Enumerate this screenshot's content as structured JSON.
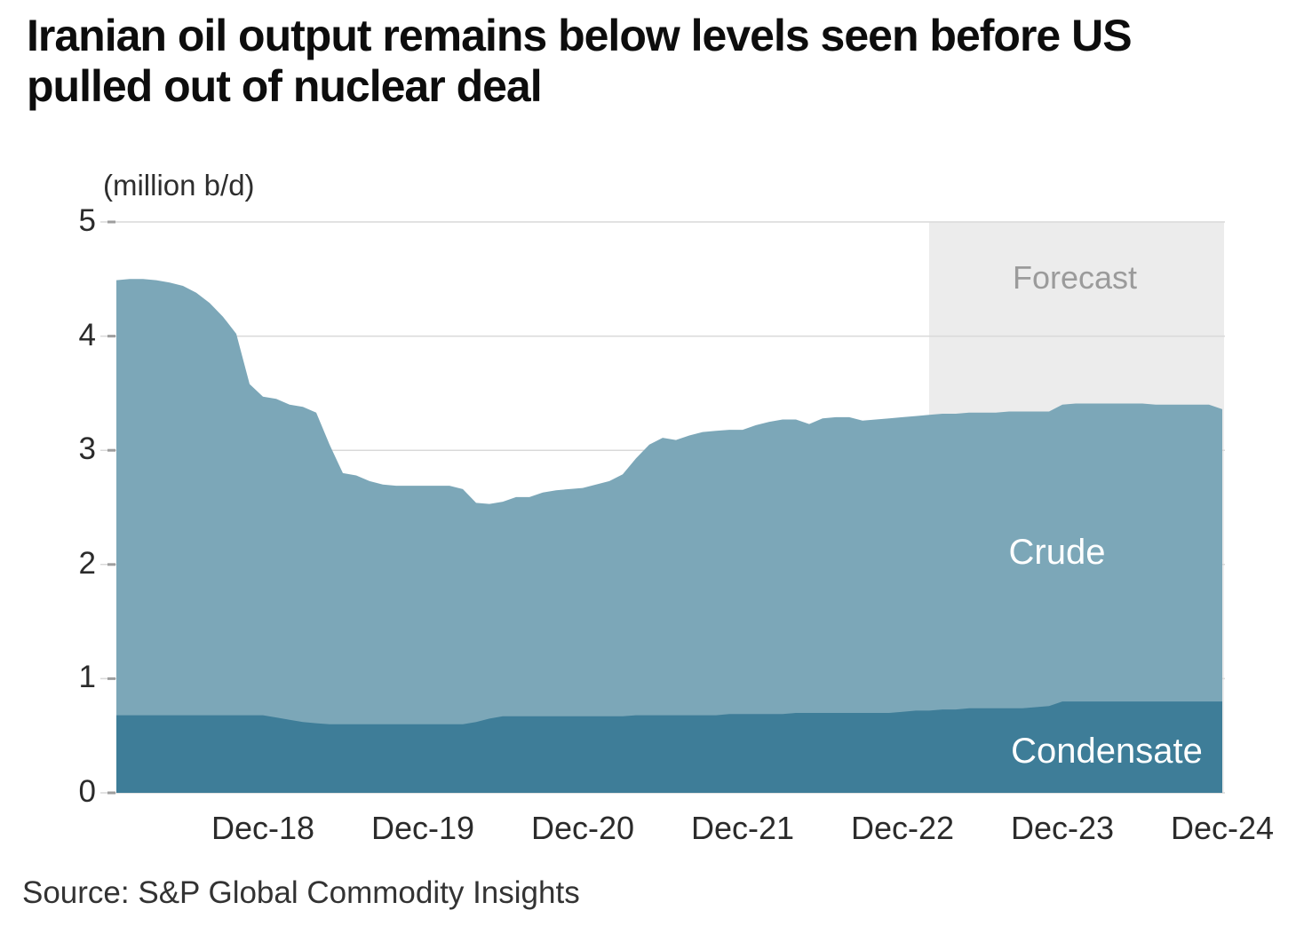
{
  "title": "Iranian oil output remains below levels seen before US pulled out of nuclear deal",
  "unit_label": "(million b/d)",
  "source": "Source: S&P Global Commodity Insights",
  "labels": {
    "forecast": "Forecast",
    "crude": "Crude",
    "condensate": "Condensate"
  },
  "colors": {
    "crude": "#7CA7B8",
    "condensate": "#3E7D98",
    "forecast_band": "#ECECEC",
    "gridline": "#D9D9D9",
    "tick": "#9E9E9E",
    "title_text": "#0D0D0D",
    "axis_text": "#2B2B2B",
    "forecast_text": "#9B9B9B",
    "background": "#FFFFFF"
  },
  "chart_data": {
    "type": "area",
    "stacked": true,
    "title": "Iranian oil output remains below levels seen before US pulled out of nuclear deal",
    "ylabel": "(million b/d)",
    "ylim": [
      0,
      5
    ],
    "y_ticks": [
      0,
      1,
      2,
      3,
      4,
      5
    ],
    "grid": "horizontal",
    "x_start": "Jan-2018",
    "x_end": "Dec-2024",
    "frequency": "monthly",
    "forecast_label": "Forecast",
    "forecast_start": "Feb-2023",
    "forecast_start_index": 61,
    "x_ticks": [
      {
        "label": "Dec-18",
        "month_index": 11
      },
      {
        "label": "Dec-19",
        "month_index": 23
      },
      {
        "label": "Dec-20",
        "month_index": 35
      },
      {
        "label": "Dec-21",
        "month_index": 47
      },
      {
        "label": "Dec-22",
        "month_index": 59
      },
      {
        "label": "Dec-23",
        "month_index": 71
      },
      {
        "label": "Dec-24",
        "month_index": 83
      }
    ],
    "series": [
      {
        "name": "Condensate",
        "values": [
          0.68,
          0.68,
          0.68,
          0.68,
          0.68,
          0.68,
          0.68,
          0.68,
          0.68,
          0.68,
          0.68,
          0.68,
          0.66,
          0.64,
          0.62,
          0.61,
          0.6,
          0.6,
          0.6,
          0.6,
          0.6,
          0.6,
          0.6,
          0.6,
          0.6,
          0.6,
          0.6,
          0.62,
          0.65,
          0.67,
          0.67,
          0.67,
          0.67,
          0.67,
          0.67,
          0.67,
          0.67,
          0.67,
          0.67,
          0.68,
          0.68,
          0.68,
          0.68,
          0.68,
          0.68,
          0.68,
          0.69,
          0.69,
          0.69,
          0.69,
          0.69,
          0.7,
          0.7,
          0.7,
          0.7,
          0.7,
          0.7,
          0.7,
          0.7,
          0.71,
          0.72,
          0.72,
          0.73,
          0.73,
          0.74,
          0.74,
          0.74,
          0.74,
          0.74,
          0.75,
          0.76,
          0.8,
          0.8,
          0.8,
          0.8,
          0.8,
          0.8,
          0.8,
          0.8,
          0.8,
          0.8,
          0.8,
          0.8,
          0.8
        ]
      },
      {
        "name": "Crude",
        "values": [
          3.81,
          3.82,
          3.82,
          3.81,
          3.79,
          3.76,
          3.7,
          3.61,
          3.49,
          3.34,
          2.9,
          2.79,
          2.79,
          2.76,
          2.76,
          2.72,
          2.45,
          2.2,
          2.18,
          2.13,
          2.1,
          2.09,
          2.09,
          2.09,
          2.09,
          2.09,
          2.06,
          1.92,
          1.88,
          1.88,
          1.92,
          1.92,
          1.96,
          1.98,
          1.99,
          2.0,
          2.03,
          2.06,
          2.12,
          2.25,
          2.37,
          2.43,
          2.41,
          2.45,
          2.48,
          2.49,
          2.49,
          2.49,
          2.53,
          2.56,
          2.58,
          2.57,
          2.53,
          2.58,
          2.59,
          2.59,
          2.56,
          2.57,
          2.58,
          2.58,
          2.58,
          2.59,
          2.59,
          2.59,
          2.59,
          2.59,
          2.59,
          2.6,
          2.6,
          2.59,
          2.58,
          2.6,
          2.61,
          2.61,
          2.61,
          2.61,
          2.61,
          2.61,
          2.6,
          2.6,
          2.6,
          2.6,
          2.6,
          2.56
        ]
      }
    ]
  }
}
